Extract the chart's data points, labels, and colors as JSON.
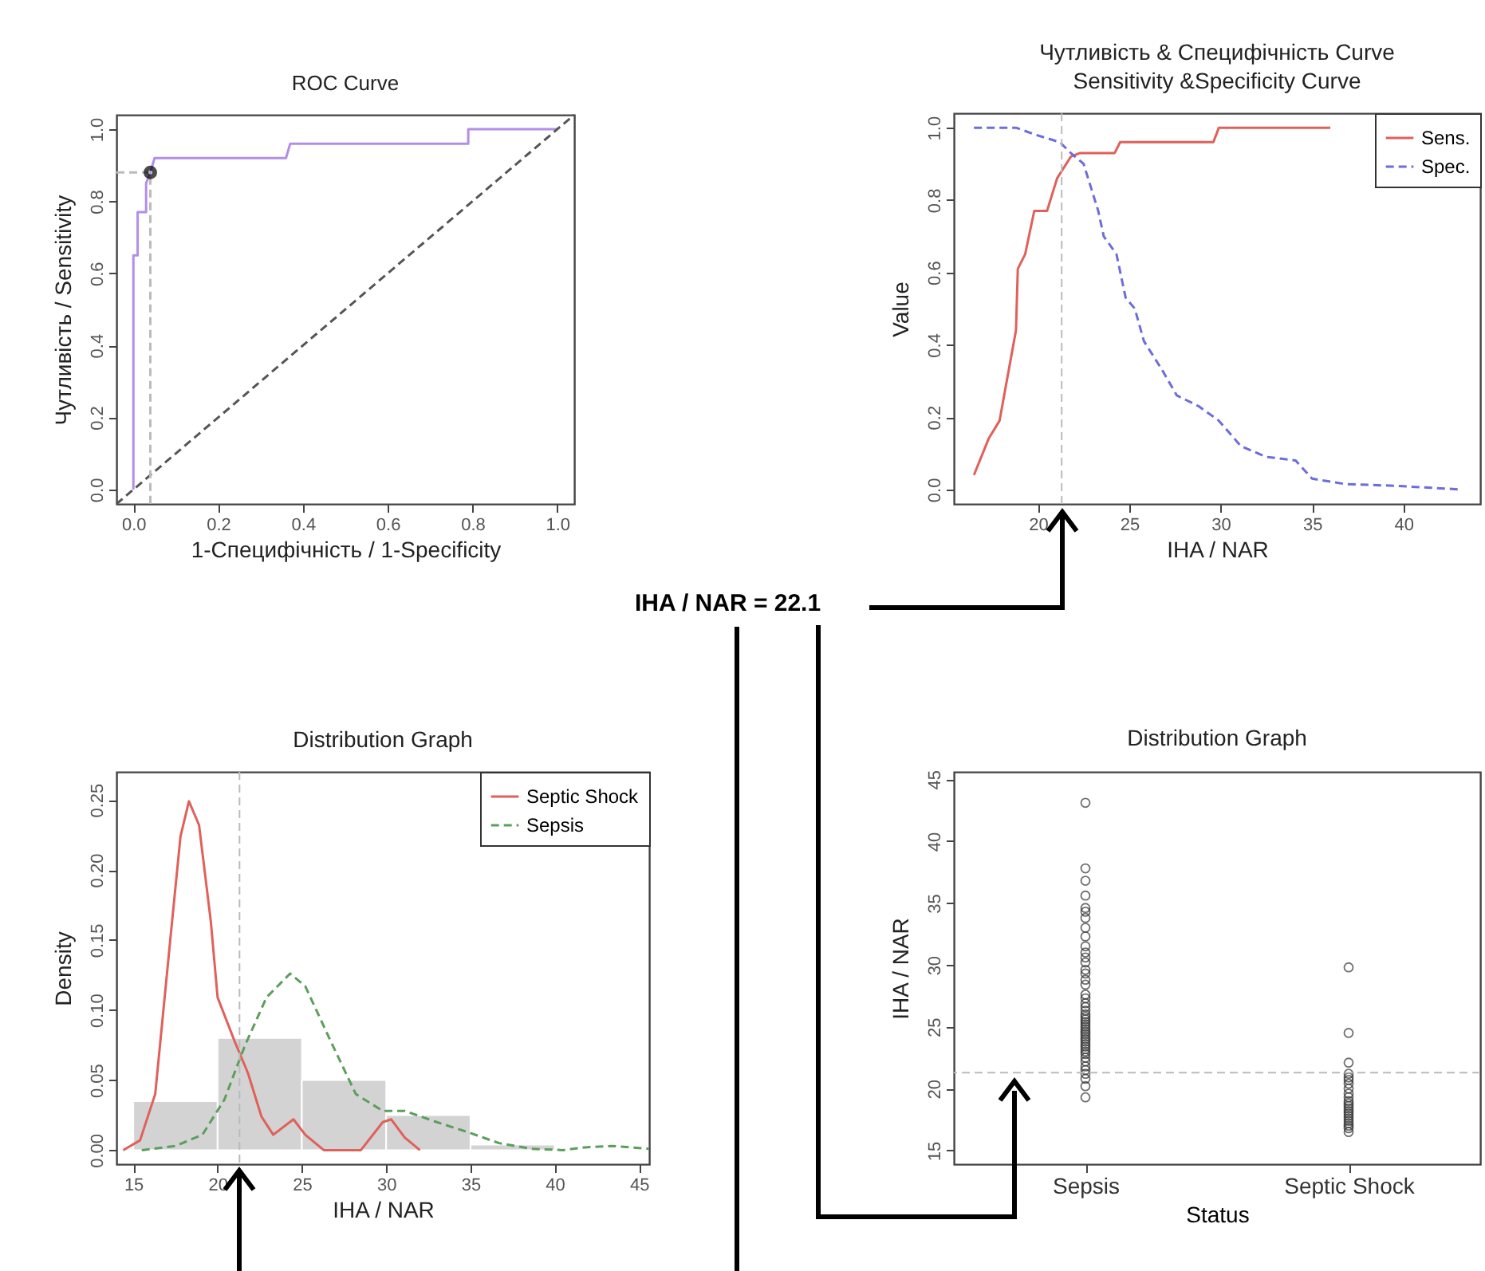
{
  "chart_data": [
    {
      "type": "line",
      "title": "ROC Curve",
      "xlabel": "1-Специфічність / 1-Specificity",
      "ylabel": "Чутливість / Sensitivity",
      "xlim": [
        -0.04,
        1.04
      ],
      "ylim": [
        -0.04,
        1.04
      ],
      "xticks": [
        {
          "value": 0,
          "label": "0.0"
        },
        0.2,
        0.4,
        0.6,
        0.8,
        {
          "value": 1,
          "label": "1.0"
        }
      ],
      "yticks": [
        {
          "value": 0,
          "label": "0.0"
        },
        0.2,
        0.4,
        0.6,
        0.8,
        {
          "value": 1,
          "label": "1.0"
        }
      ],
      "series": [
        {
          "color": "#b38ee6",
          "line_style": "solid",
          "x": [
            0,
            0,
            0.01,
            0.01,
            0.03,
            0.03,
            0.04,
            0.05,
            0.36,
            0.37,
            0.79,
            0.79,
            1.0
          ],
          "values": [
            0,
            0.65,
            0.65,
            0.77,
            0.77,
            0.85,
            0.88,
            0.92,
            0.92,
            0.96,
            0.96,
            1.0,
            1.0
          ]
        },
        {
          "color": "#555555",
          "line_style": "dashed",
          "x": [
            -0.04,
            1.04
          ],
          "values": [
            -0.04,
            1.04
          ]
        },
        {
          "color": "#bbbbbb",
          "line_style": "dashed",
          "x": [
            -0.04,
            0.04,
            0.04
          ],
          "values": [
            0.88,
            0.88,
            -0.04
          ]
        },
        {
          "type": "scatter",
          "color": "#000000",
          "x": [
            0.04
          ],
          "values": [
            0.88
          ]
        }
      ]
    },
    {
      "type": "line",
      "title": "Чутливість & Специфічність Curve",
      "subtitle": "Sensitivity &Specificity Curve",
      "xlabel": "IHA / NAR",
      "ylabel": "Value",
      "xlim": [
        15.4,
        44.2
      ],
      "ylim": [
        -0.04,
        1.04
      ],
      "xticks": [
        20,
        25,
        30,
        35,
        40
      ],
      "yticks": [
        {
          "value": 0,
          "label": "0.0"
        },
        0.2,
        0.4,
        0.6,
        0.8,
        {
          "value": 1,
          "label": "1.0"
        }
      ],
      "legend": "top right",
      "annotations": [
        "IHA / NAR = 22.1"
      ],
      "ref_lines": [
        {
          "axis": "x",
          "value": 21.3,
          "color": "#bbbbbb",
          "line_style": "dashed"
        }
      ],
      "series": [
        {
          "name": "Sens.",
          "color": "#e0605a",
          "line_style": "solid",
          "x": [
            16.5,
            17.3,
            17.9,
            18.8,
            18.9,
            19.3,
            19.8,
            20.5,
            21.05,
            21.8,
            22.3,
            24.2,
            24.5,
            29.6,
            29.9,
            36.0
          ],
          "values": [
            0.04,
            0.14,
            0.19,
            0.44,
            0.61,
            0.65,
            0.77,
            0.77,
            0.86,
            0.92,
            0.93,
            0.93,
            0.96,
            0.96,
            1.0,
            1.0
          ]
        },
        {
          "name": "Spec.",
          "color": "#6c6cdc",
          "line_style": "dashed",
          "x": [
            16.5,
            18.8,
            19.9,
            21.2,
            21.8,
            22.5,
            23.3,
            23.6,
            24.3,
            24.8,
            25.3,
            25.8,
            26.8,
            27.6,
            28.8,
            29.9,
            31.1,
            32.5,
            34.1,
            35.0,
            36.8,
            39.6,
            43.1
          ],
          "values": [
            1.0,
            1.0,
            0.98,
            0.96,
            0.93,
            0.9,
            0.77,
            0.7,
            0.65,
            0.53,
            0.5,
            0.41,
            0.33,
            0.26,
            0.23,
            0.19,
            0.12,
            0.09,
            0.08,
            0.03,
            0.015,
            0.01,
            0.0
          ]
        }
      ]
    },
    {
      "type": "line",
      "title": "Distribution Graph",
      "xlabel": "IHA / NAR",
      "ylabel": "Density",
      "xlim": [
        14,
        45.6
      ],
      "ylim": [
        -0.01,
        0.27
      ],
      "xticks": [
        15,
        20,
        25,
        30,
        35,
        40,
        45
      ],
      "yticks": [
        {
          "value": 0,
          "label": "0.00"
        },
        0.05,
        {
          "value": 0.1,
          "label": "0.10"
        },
        0.15,
        {
          "value": 0.2,
          "label": "0.20"
        },
        0.25
      ],
      "legend": "top right",
      "ref_lines": [
        {
          "axis": "x",
          "value": 21.3,
          "color": "#bbbbbb",
          "line_style": "dashed"
        }
      ],
      "series": [
        {
          "type": "histogram",
          "color": "#d3d3d3",
          "bins": [
            15,
            20,
            25,
            30,
            35,
            40
          ],
          "values": [
            0.035,
            0.08,
            0.05,
            0.025,
            0.004
          ]
        },
        {
          "name": "Septic Shock",
          "color": "#e0605a",
          "line_style": "solid",
          "x": [
            14.4,
            15.4,
            16.3,
            17.2,
            17.8,
            18.3,
            18.9,
            19.6,
            20.0,
            21.0,
            21.8,
            22.6,
            23.3,
            24.5,
            25.2,
            26.3,
            28.5,
            29.8,
            30.3,
            31.1,
            32.0
          ],
          "values": [
            0,
            0.007,
            0.04,
            0.151,
            0.224,
            0.249,
            0.232,
            0.163,
            0.109,
            0.078,
            0.055,
            0.024,
            0.011,
            0.022,
            0.011,
            0,
            0,
            0.02,
            0.022,
            0.009,
            0
          ]
        },
        {
          "name": "Sepsis",
          "color": "#5c9e5c",
          "line_style": "dashed",
          "x": [
            15.5,
            17.5,
            19.1,
            20.4,
            21.6,
            22.9,
            24.3,
            25.2,
            26.7,
            28.2,
            29.8,
            31.1,
            33.0,
            34.8,
            36.7,
            38.6,
            40.5,
            41.8,
            43.4,
            45.6
          ],
          "values": [
            0,
            0.003,
            0.011,
            0.036,
            0.074,
            0.109,
            0.126,
            0.117,
            0.078,
            0.04,
            0.028,
            0.028,
            0.02,
            0.013,
            0.005,
            0.001,
            0,
            0.002,
            0.003,
            0.001
          ]
        }
      ]
    },
    {
      "type": "scatter",
      "title": "Distribution Graph",
      "xlabel": "Status",
      "ylabel": "IHA / NAR",
      "categories": [
        "Sepsis",
        "Septic Shock"
      ],
      "ylim": [
        13.9,
        45.6
      ],
      "yticks": [
        15,
        20,
        25,
        30,
        35,
        40,
        45
      ],
      "marker": "circle",
      "ref_lines": [
        {
          "axis": "y",
          "value": 21.3,
          "color": "#bbbbbb",
          "line_style": "dashed"
        }
      ],
      "series": [
        {
          "color": "#333333",
          "x": [
            "Sepsis",
            "Sepsis",
            "Sepsis",
            "Sepsis",
            "Sepsis",
            "Sepsis",
            "Sepsis",
            "Sepsis",
            "Sepsis",
            "Sepsis",
            "Sepsis",
            "Sepsis",
            "Sepsis",
            "Sepsis",
            "Sepsis",
            "Sepsis",
            "Sepsis",
            "Sepsis",
            "Sepsis",
            "Sepsis",
            "Sepsis",
            "Sepsis",
            "Sepsis",
            "Sepsis",
            "Sepsis",
            "Sepsis",
            "Sepsis",
            "Sepsis",
            "Sepsis",
            "Sepsis",
            "Sepsis",
            "Sepsis",
            "Sepsis",
            "Sepsis",
            "Sepsis",
            "Sepsis",
            "Sepsis",
            "Sepsis",
            "Sepsis",
            "Sepsis",
            "Sepsis",
            "Sepsis",
            "Sepsis",
            "Sepsis",
            "Sepsis",
            "Sepsis",
            "Sepsis"
          ],
          "values": [
            43.1,
            37.8,
            36.8,
            35.6,
            34.6,
            34.3,
            33.8,
            33.0,
            32.3,
            31.5,
            31.0,
            30.6,
            30.2,
            29.6,
            29.3,
            28.8,
            28.4,
            27.6,
            27.3,
            26.9,
            26.6,
            26.3,
            26.0,
            25.8,
            25.6,
            25.4,
            25.2,
            25.0,
            24.8,
            24.6,
            24.4,
            24.2,
            24.0,
            23.8,
            23.6,
            23.4,
            23.2,
            23.0,
            22.8,
            22.5,
            22.2,
            21.8,
            21.5,
            21.2,
            20.8,
            20.2,
            19.3
          ]
        },
        {
          "color": "#333333",
          "x": [
            "Septic Shock",
            "Septic Shock",
            "Septic Shock",
            "Septic Shock",
            "Septic Shock",
            "Septic Shock",
            "Septic Shock",
            "Septic Shock",
            "Septic Shock",
            "Septic Shock",
            "Septic Shock",
            "Septic Shock",
            "Septic Shock",
            "Septic Shock",
            "Septic Shock",
            "Septic Shock",
            "Septic Shock",
            "Septic Shock",
            "Septic Shock",
            "Septic Shock",
            "Septic Shock",
            "Septic Shock",
            "Septic Shock"
          ],
          "values": [
            29.8,
            24.5,
            22.1,
            21.2,
            20.9,
            20.7,
            20.4,
            20.0,
            19.6,
            19.3,
            19.0,
            18.8,
            18.6,
            18.4,
            18.2,
            18.0,
            17.8,
            17.6,
            17.4,
            17.2,
            17.0,
            16.8,
            16.5
          ]
        }
      ]
    }
  ]
}
